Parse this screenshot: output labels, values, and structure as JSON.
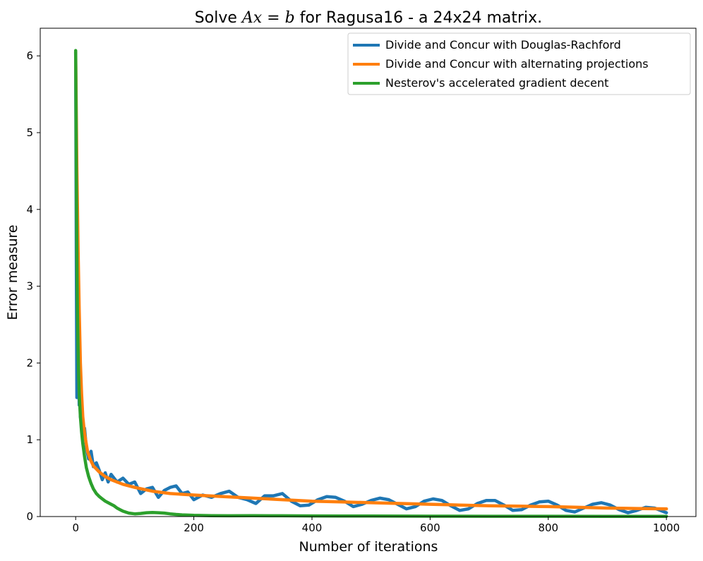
{
  "chart_data": {
    "type": "line",
    "title_prefix": "Solve ",
    "title_math": "Ax = b",
    "title_suffix": " for Ragusa16 - a 24x24 matrix.",
    "xlabel": "Number of iterations",
    "ylabel": "Error measure",
    "xlim": [
      -60,
      1050
    ],
    "ylim": [
      0,
      6.36
    ],
    "xticks": [
      0,
      200,
      400,
      600,
      800,
      1000
    ],
    "yticks": [
      0,
      1,
      2,
      3,
      4,
      5,
      6
    ],
    "grid": false,
    "legend_position": "top-right",
    "series": [
      {
        "name": "Divide and Concur with Douglas-Rachford",
        "color": "#1f77b4",
        "x": [
          0,
          1,
          2,
          3,
          4,
          5,
          6,
          7,
          8,
          10,
          12,
          15,
          18,
          22,
          26,
          30,
          35,
          40,
          45,
          50,
          55,
          60,
          70,
          80,
          90,
          100,
          110,
          120,
          130,
          140,
          150,
          160,
          170,
          180,
          190,
          200,
          215,
          230,
          245,
          260,
          275,
          290,
          305,
          320,
          335,
          350,
          365,
          380,
          395,
          410,
          425,
          440,
          455,
          470,
          485,
          500,
          515,
          530,
          545,
          560,
          575,
          590,
          605,
          620,
          635,
          650,
          665,
          680,
          695,
          710,
          725,
          740,
          755,
          770,
          785,
          800,
          815,
          830,
          845,
          860,
          875,
          890,
          905,
          920,
          935,
          950,
          965,
          980,
          1000
        ],
        "y": [
          6.05,
          3.4,
          1.55,
          3.1,
          1.6,
          2.1,
          1.45,
          1.65,
          1.3,
          1.2,
          1.05,
          1.15,
          0.9,
          0.75,
          0.85,
          0.65,
          0.7,
          0.6,
          0.48,
          0.57,
          0.45,
          0.55,
          0.45,
          0.5,
          0.42,
          0.45,
          0.3,
          0.36,
          0.38,
          0.25,
          0.34,
          0.38,
          0.4,
          0.3,
          0.32,
          0.22,
          0.28,
          0.25,
          0.3,
          0.33,
          0.25,
          0.22,
          0.17,
          0.27,
          0.27,
          0.3,
          0.2,
          0.14,
          0.15,
          0.22,
          0.26,
          0.25,
          0.2,
          0.13,
          0.16,
          0.21,
          0.24,
          0.22,
          0.16,
          0.1,
          0.13,
          0.2,
          0.23,
          0.21,
          0.14,
          0.08,
          0.1,
          0.17,
          0.21,
          0.21,
          0.15,
          0.08,
          0.09,
          0.15,
          0.19,
          0.2,
          0.15,
          0.08,
          0.06,
          0.11,
          0.16,
          0.18,
          0.15,
          0.09,
          0.05,
          0.08,
          0.12,
          0.11,
          0.05
        ]
      },
      {
        "name": "Divide and Concur with alternating projections",
        "color": "#ff7f0e",
        "x": [
          0,
          2,
          4,
          6,
          8,
          10,
          12,
          15,
          20,
          25,
          30,
          40,
          50,
          60,
          80,
          100,
          130,
          160,
          200,
          250,
          300,
          350,
          400,
          450,
          500,
          550,
          600,
          650,
          700,
          750,
          800,
          850,
          900,
          950,
          1000
        ],
        "y": [
          6.05,
          4.55,
          3.5,
          2.7,
          2.0,
          1.6,
          1.3,
          1.08,
          0.85,
          0.74,
          0.66,
          0.58,
          0.52,
          0.48,
          0.42,
          0.38,
          0.33,
          0.3,
          0.28,
          0.26,
          0.24,
          0.22,
          0.2,
          0.19,
          0.18,
          0.17,
          0.16,
          0.15,
          0.14,
          0.135,
          0.13,
          0.12,
          0.11,
          0.105,
          0.1
        ]
      },
      {
        "name": "Nesterov's accelerated gradient decent",
        "color": "#2ca02c",
        "x": [
          0,
          1,
          2,
          3,
          4,
          5,
          6,
          8,
          10,
          12,
          15,
          18,
          22,
          26,
          30,
          35,
          40,
          45,
          50,
          55,
          60,
          65,
          70,
          75,
          80,
          90,
          100,
          110,
          120,
          130,
          140,
          150,
          160,
          170,
          180,
          200,
          230,
          260,
          300,
          350,
          400,
          450,
          500,
          600,
          700,
          800,
          900,
          1000
        ],
        "y": [
          6.07,
          4.55,
          3.45,
          2.7,
          2.2,
          1.85,
          1.6,
          1.3,
          1.1,
          0.95,
          0.78,
          0.64,
          0.52,
          0.43,
          0.36,
          0.3,
          0.26,
          0.23,
          0.2,
          0.18,
          0.16,
          0.14,
          0.11,
          0.09,
          0.07,
          0.045,
          0.035,
          0.04,
          0.05,
          0.052,
          0.05,
          0.045,
          0.035,
          0.028,
          0.022,
          0.016,
          0.012,
          0.01,
          0.011,
          0.01,
          0.008,
          0.007,
          0.006,
          0.005,
          0.004,
          0.004,
          0.003,
          0.003
        ]
      }
    ]
  }
}
